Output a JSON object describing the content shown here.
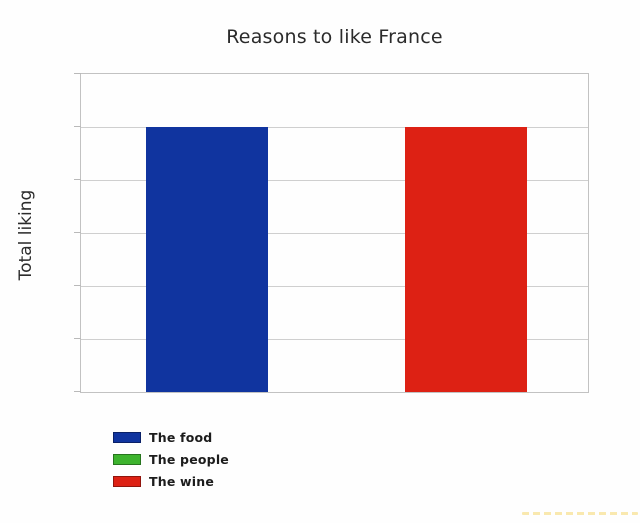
{
  "chart_data": {
    "type": "bar",
    "title": "Reasons to like France",
    "xlabel": "",
    "ylabel": "Total liking",
    "categories": [
      "The food",
      "The people",
      "The wine"
    ],
    "values": [
      5,
      0,
      5
    ],
    "ylim": [
      0,
      6
    ],
    "grid": "horizontal",
    "x_tick_labels_visible": false,
    "y_tick_labels_visible": false,
    "legend_position": "bottom-left",
    "colors": [
      "#10349f",
      "#3db32e",
      "#dd2114"
    ]
  },
  "legend": {
    "items": [
      {
        "label": "The food",
        "color": "#10349f"
      },
      {
        "label": "The people",
        "color": "#3db32e"
      },
      {
        "label": "The wine",
        "color": "#dd2114"
      }
    ]
  },
  "colors": {
    "background": "#fefefe",
    "grid": "#cfcfcf",
    "title_text": "#2b2b2b",
    "watermark": "#f5d76e"
  }
}
